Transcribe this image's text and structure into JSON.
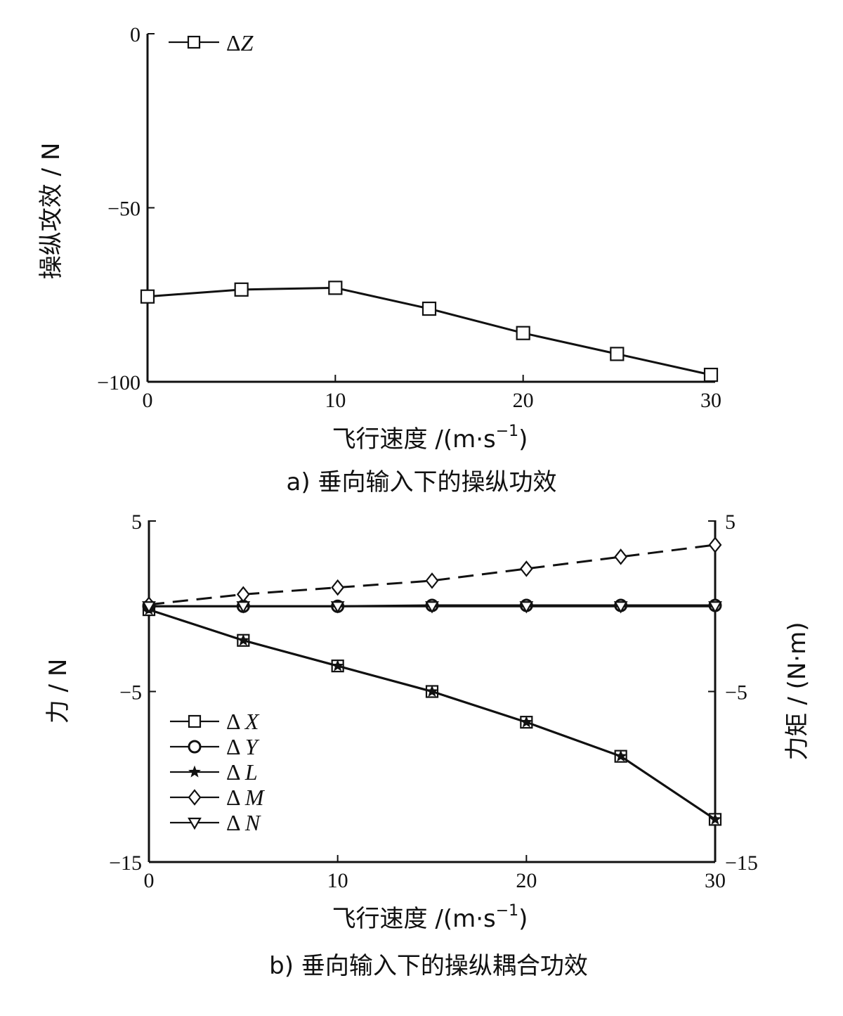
{
  "chart_data": [
    {
      "type": "line",
      "xlabel": "飞行速度 /(m·s",
      "xlabel_sup": "−1",
      "xlabel_end": ")",
      "ylabel": "操纵攻效 / N",
      "caption": "a)   垂向输入下的操纵功效",
      "xlim": [
        0,
        30
      ],
      "ylim": [
        -100,
        0
      ],
      "xticks": [
        "0",
        "10",
        "20",
        "30"
      ],
      "yticks": [
        "0",
        "−50",
        "−100"
      ],
      "x": [
        0,
        5,
        10,
        15,
        20,
        25,
        30
      ],
      "series": [
        {
          "name": "ΔZ",
          "name_delta": "Δ",
          "name_var": "Z",
          "marker": "square",
          "line": "solid",
          "values": [
            -75.5,
            -73.5,
            -73,
            -79,
            -86,
            -92,
            -98
          ]
        }
      ],
      "legend": "top-left"
    },
    {
      "type": "line",
      "xlabel": "飞行速度 /(m·s",
      "xlabel_sup": "−1",
      "xlabel_end": ")",
      "ylabel_left": "力 / N",
      "ylabel_right": "力矩 / (N·m)",
      "caption": "b)   垂向输入下的操纵耦合功效",
      "xlim": [
        0,
        30
      ],
      "ylim": [
        -15,
        5
      ],
      "ylim_right": [
        -15,
        5
      ],
      "xticks": [
        "0",
        "10",
        "20",
        "30"
      ],
      "yticks": [
        "5",
        "−5",
        "−15"
      ],
      "yticks_right": [
        "5",
        "−5",
        "−15"
      ],
      "x": [
        0,
        5,
        10,
        15,
        20,
        25,
        30
      ],
      "series": [
        {
          "name": "ΔX",
          "name_delta": "Δ",
          "name_var": "X",
          "marker": "square",
          "line": "solid",
          "values": [
            -0.2,
            -2,
            -3.5,
            -5,
            -6.8,
            -8.8,
            -12.5
          ]
        },
        {
          "name": "ΔY",
          "name_delta": "Δ",
          "name_var": "Y",
          "marker": "circle",
          "line": "solid",
          "values": [
            0,
            0,
            0,
            0.05,
            0.05,
            0.05,
            0.05
          ]
        },
        {
          "name": "ΔL",
          "name_delta": "Δ",
          "name_var": "L",
          "marker": "star",
          "line": "solid",
          "values": [
            -0.2,
            -2,
            -3.5,
            -5,
            -6.8,
            -8.8,
            -12.5
          ]
        },
        {
          "name": "ΔM",
          "name_delta": "Δ",
          "name_var": "M",
          "marker": "diamond",
          "line": "dashed",
          "values": [
            0.1,
            0.7,
            1.1,
            1.5,
            2.2,
            2.9,
            3.6
          ]
        },
        {
          "name": "ΔN",
          "name_delta": "Δ",
          "name_var": "N",
          "marker": "triangle-down",
          "line": "solid",
          "values": [
            0,
            0,
            0,
            0,
            0,
            0,
            0
          ]
        }
      ],
      "legend": "bottom-left"
    }
  ]
}
